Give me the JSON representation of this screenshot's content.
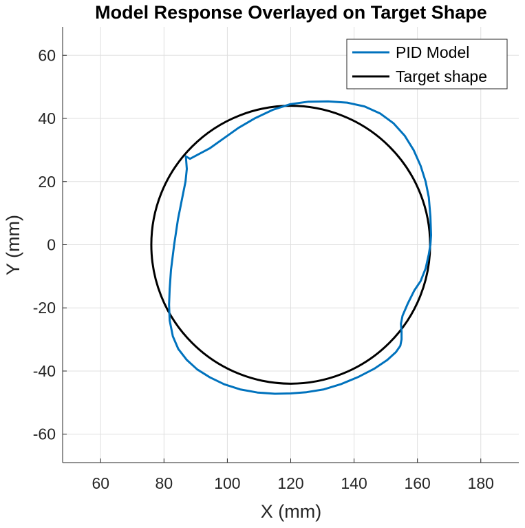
{
  "chart_data": {
    "type": "line",
    "title": "Model Response Overlayed on Target Shape",
    "xlabel": "X (mm)",
    "ylabel": "Y (mm)",
    "xlim": [
      48,
      192
    ],
    "ylim": [
      -69,
      69
    ],
    "xticks": [
      60,
      80,
      100,
      120,
      140,
      160,
      180
    ],
    "yticks": [
      -60,
      -40,
      -20,
      0,
      20,
      40,
      60
    ],
    "xtick_labels": [
      "60",
      "80",
      "100",
      "120",
      "140",
      "160",
      "180"
    ],
    "ytick_labels": [
      "-60",
      "-40",
      "-20",
      "0",
      "20",
      "40",
      "60"
    ],
    "grid": true,
    "legend_position": "top-right",
    "series": [
      {
        "name": "PID Model",
        "color": "#0072bd",
        "x": [
          87.2,
          86.8,
          85.8,
          84.4,
          83.2,
          82.2,
          81.8,
          81.6,
          81.8,
          82.8,
          84.5,
          87.2,
          90.5,
          94.5,
          99.0,
          104.0,
          109.5,
          115.0,
          120.0,
          125.0,
          130.5,
          136.0,
          141.5,
          146.5,
          150.5,
          153.2,
          154.6,
          155.0,
          155.0,
          154.8,
          155.3,
          157.0,
          159.0,
          161.0,
          162.6,
          163.6,
          164.1,
          164.3,
          164.1,
          163.6,
          162.6,
          161.0,
          158.8,
          156.0,
          152.4,
          148.2,
          143.3,
          137.8,
          131.8,
          125.6,
          119.8,
          114.3,
          108.8,
          103.5,
          98.6,
          94.4,
          90.8,
          88.2,
          86.9,
          87.2
        ],
        "y": [
          24.0,
          20.0,
          15.0,
          8.0,
          0.0,
          -8.0,
          -14.0,
          -19.0,
          -24.0,
          -29.0,
          -33.0,
          -36.5,
          -39.5,
          -42.0,
          -44.2,
          -45.8,
          -46.8,
          -47.2,
          -47.1,
          -46.7,
          -45.8,
          -44.1,
          -41.8,
          -39.2,
          -36.5,
          -34.0,
          -32.0,
          -30.0,
          -27.5,
          -25.0,
          -22.5,
          -18.5,
          -14.5,
          -11.5,
          -7.5,
          -3.0,
          0.0,
          3.0,
          9.0,
          15.0,
          20.0,
          25.0,
          30.0,
          34.5,
          38.5,
          41.6,
          43.8,
          45.0,
          45.4,
          45.3,
          44.5,
          42.7,
          40.1,
          37.0,
          33.5,
          30.5,
          28.6,
          27.2,
          28.0,
          24.0
        ]
      },
      {
        "name": "Target shape",
        "color": "#000000",
        "shape": "circle",
        "center": [
          120,
          0
        ],
        "radius": 44
      }
    ]
  }
}
